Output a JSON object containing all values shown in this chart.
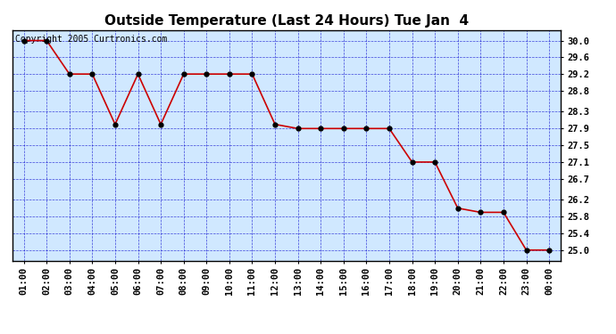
{
  "title": "Outside Temperature (Last 24 Hours) Tue Jan  4",
  "copyright_text": "Copyright 2005 Curtronics.com",
  "background_color": "#d0e8ff",
  "line_color": "#cc0000",
  "marker_color": "#000000",
  "grid_color": "#0000cc",
  "x_labels": [
    "01:00",
    "02:00",
    "03:00",
    "04:00",
    "05:00",
    "06:00",
    "07:00",
    "08:00",
    "09:00",
    "10:00",
    "11:00",
    "12:00",
    "13:00",
    "14:00",
    "15:00",
    "16:00",
    "17:00",
    "18:00",
    "19:00",
    "20:00",
    "21:00",
    "22:00",
    "23:00",
    "00:00"
  ],
  "x_values": [
    1,
    2,
    3,
    4,
    5,
    6,
    7,
    8,
    9,
    10,
    11,
    12,
    13,
    14,
    15,
    16,
    17,
    18,
    19,
    20,
    21,
    22,
    23,
    24
  ],
  "y_values": [
    30.0,
    30.0,
    29.2,
    29.2,
    28.0,
    29.2,
    28.0,
    29.2,
    29.2,
    29.2,
    29.2,
    28.0,
    27.9,
    27.9,
    27.9,
    27.9,
    27.9,
    27.1,
    27.1,
    26.0,
    25.9,
    25.9,
    25.0,
    25.0
  ],
  "ylim": [
    24.75,
    30.25
  ],
  "yticks": [
    25.0,
    25.4,
    25.8,
    26.2,
    26.7,
    27.1,
    27.5,
    27.9,
    28.3,
    28.8,
    29.2,
    29.6,
    30.0
  ],
  "title_fontsize": 11,
  "tick_fontsize": 7.5,
  "copyright_fontsize": 7
}
